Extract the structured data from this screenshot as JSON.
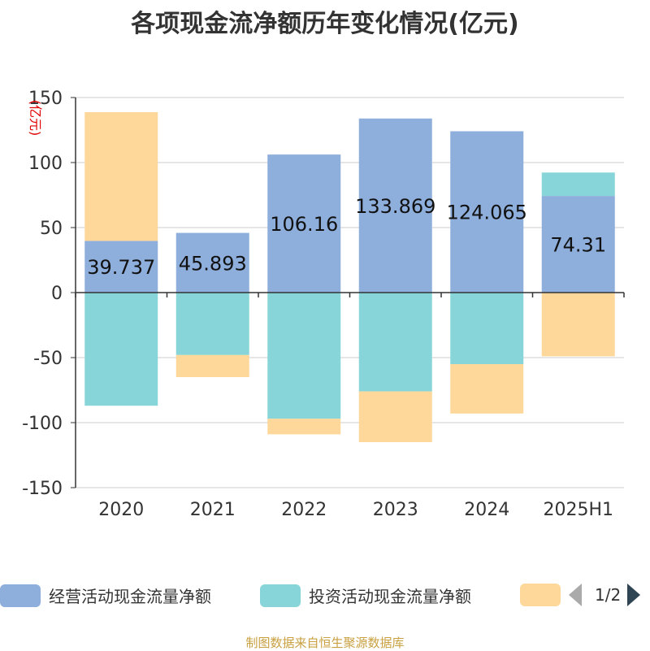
{
  "chart_data": {
    "type": "bar",
    "stacked": true,
    "title": "各项现金流净额历年变化情况(亿元)",
    "ylabel": "(亿元)",
    "ylim": [
      -150,
      150
    ],
    "yticks": [
      150,
      100,
      50,
      0,
      -50,
      -100,
      -150
    ],
    "categories": [
      "2020",
      "2021",
      "2022",
      "2023",
      "2024",
      "2025H1"
    ],
    "grid": true,
    "legend_placement": "bottom",
    "series": [
      {
        "name": "经营活动现金流量净额",
        "color": "#8eaedc",
        "values": [
          39.737,
          45.893,
          106.16,
          133.869,
          124.065,
          74.31
        ],
        "data_labels": [
          "39.737",
          "45.893",
          "106.16",
          "133.869",
          "124.065",
          "74.31"
        ]
      },
      {
        "name": "投资活动现金流量净额",
        "color": "#87d5d9",
        "values": [
          -87,
          -48,
          -97,
          -76,
          -55,
          18
        ]
      },
      {
        "name": "",
        "color": "#fdd89a",
        "values": [
          99,
          -17,
          -12,
          -39,
          -38,
          -49
        ]
      }
    ]
  },
  "legend": {
    "items": [
      {
        "label": "经营活动现金流量净额",
        "color": "#8eaedc"
      },
      {
        "label": "投资活动现金流量净额",
        "color": "#87d5d9"
      },
      {
        "label": "",
        "color": "#fdd89a"
      }
    ],
    "pager": "1/2"
  },
  "source": "制图数据来自恒生聚源数据库"
}
